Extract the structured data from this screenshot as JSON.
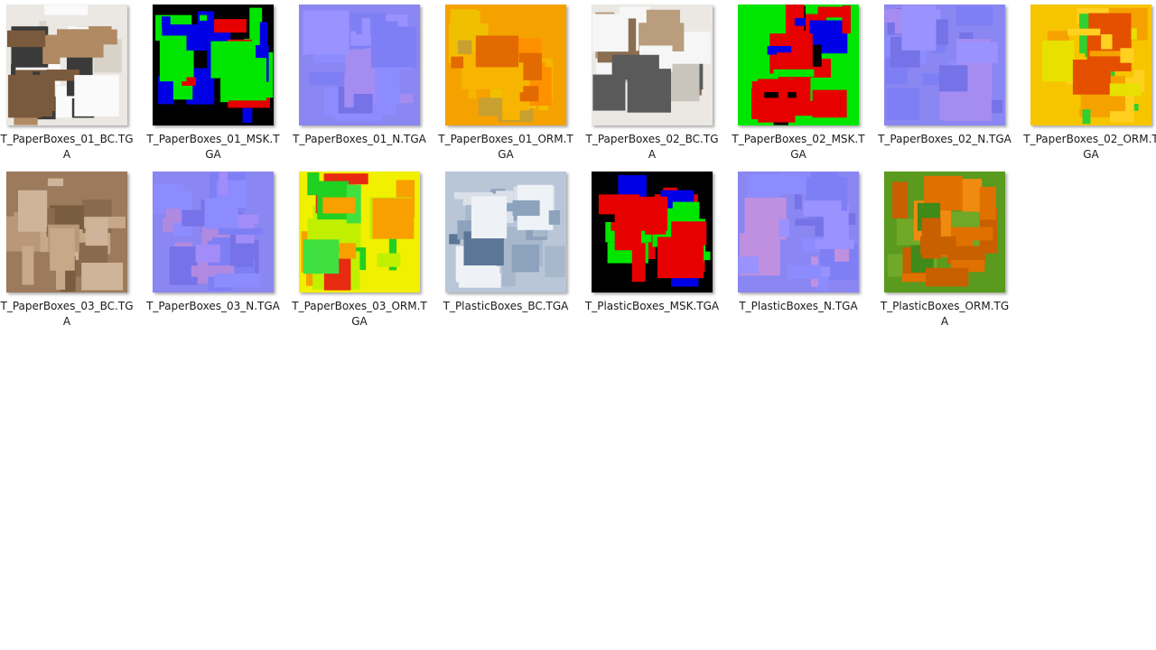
{
  "files": [
    {
      "name": "T_PaperBoxes_01_BC.TGA"
    },
    {
      "name": "T_PaperBoxes_01_MSK.TGA"
    },
    {
      "name": "T_PaperBoxes_01_N.TGA"
    },
    {
      "name": "T_PaperBoxes_01_ORM.TGA"
    },
    {
      "name": "T_PaperBoxes_02_BC.TGA"
    },
    {
      "name": "T_PaperBoxes_02_MSK.TGA"
    },
    {
      "name": "T_PaperBoxes_02_N.TGA"
    },
    {
      "name": "T_PaperBoxes_02_ORM.TGA"
    },
    {
      "name": "T_PaperBoxes_03_BC.TGA"
    },
    {
      "name": "T_PaperBoxes_03_N.TGA"
    },
    {
      "name": "T_PaperBoxes_03_ORM.TGA"
    },
    {
      "name": "T_PlasticBoxes_BC.TGA"
    },
    {
      "name": "T_PlasticBoxes_MSK.TGA"
    },
    {
      "name": "T_PlasticBoxes_N.TGA"
    },
    {
      "name": "T_PlasticBoxes_ORM.TGA"
    }
  ]
}
